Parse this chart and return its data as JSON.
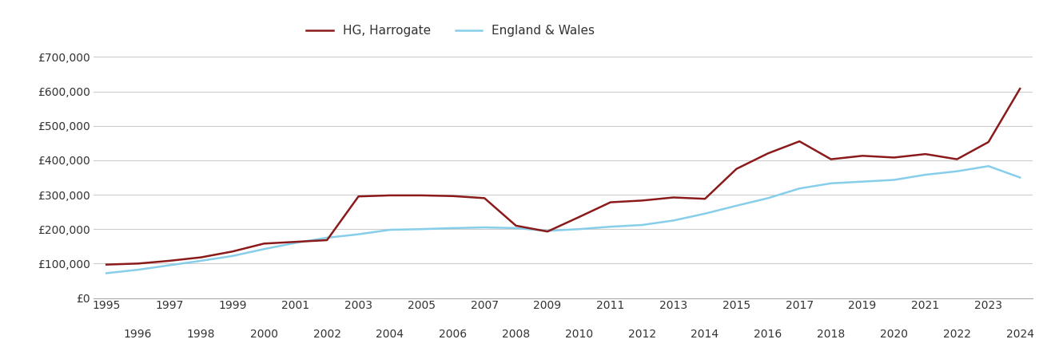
{
  "harrogate_years": [
    1995,
    1996,
    1997,
    1998,
    1999,
    2000,
    2001,
    2002,
    2003,
    2004,
    2005,
    2006,
    2007,
    2008,
    2009,
    2010,
    2011,
    2012,
    2013,
    2014,
    2015,
    2016,
    2017,
    2018,
    2019,
    2020,
    2021,
    2022,
    2023,
    2024
  ],
  "harrogate_values": [
    97000,
    100000,
    108000,
    118000,
    135000,
    158000,
    163000,
    168000,
    295000,
    298000,
    298000,
    296000,
    290000,
    210000,
    193000,
    235000,
    278000,
    283000,
    292000,
    288000,
    375000,
    420000,
    455000,
    403000,
    413000,
    408000,
    418000,
    403000,
    453000,
    608000
  ],
  "england_years": [
    1995,
    1996,
    1997,
    1998,
    1999,
    2000,
    2001,
    2002,
    2003,
    2004,
    2005,
    2006,
    2007,
    2008,
    2009,
    2010,
    2011,
    2012,
    2013,
    2014,
    2015,
    2016,
    2017,
    2018,
    2019,
    2020,
    2021,
    2022,
    2023,
    2024
  ],
  "england_values": [
    72000,
    82000,
    95000,
    108000,
    122000,
    142000,
    160000,
    175000,
    185000,
    198000,
    200000,
    203000,
    205000,
    203000,
    195000,
    200000,
    207000,
    212000,
    225000,
    245000,
    268000,
    290000,
    318000,
    333000,
    338000,
    343000,
    358000,
    368000,
    383000,
    350000
  ],
  "harrogate_color": "#8B1A1A",
  "england_color": "#87CEEB",
  "harrogate_label": "HG, Harrogate",
  "england_label": "England & Wales",
  "yticks": [
    0,
    100000,
    200000,
    300000,
    400000,
    500000,
    600000,
    700000
  ],
  "ytick_labels": [
    "£0",
    "£100,000",
    "£200,000",
    "£300,000",
    "£400,000",
    "£500,000",
    "£600,000",
    "£700,000"
  ],
  "xlim_min": 1994.6,
  "xlim_max": 2024.4,
  "ylim_min": 0,
  "ylim_max": 730000,
  "bg_color": "#ffffff",
  "grid_color": "#cccccc",
  "line_width": 1.8,
  "odd_years": [
    1995,
    1997,
    1999,
    2001,
    2003,
    2005,
    2007,
    2009,
    2011,
    2013,
    2015,
    2017,
    2019,
    2021,
    2023
  ],
  "even_years": [
    1996,
    1998,
    2000,
    2002,
    2004,
    2006,
    2008,
    2010,
    2012,
    2014,
    2016,
    2018,
    2020,
    2022,
    2024
  ]
}
